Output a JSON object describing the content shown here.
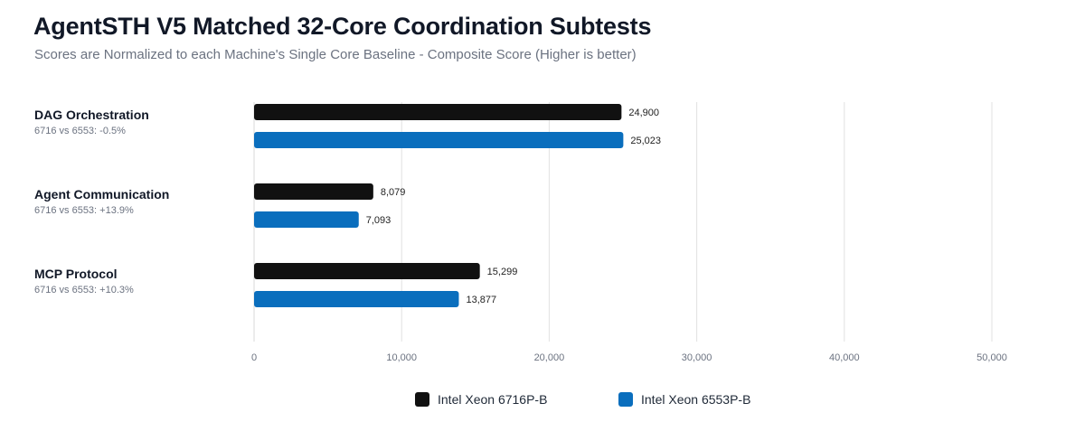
{
  "chart_data": {
    "type": "bar",
    "orientation": "horizontal",
    "title": "AgentSTH V5 Matched 32-Core Coordination Subtests",
    "subtitle": "Scores are Normalized to each Machine's Single Core Baseline - Composite Score (Higher is better)",
    "categories": [
      "DAG Orchestration",
      "Agent Communication",
      "MCP Protocol"
    ],
    "category_notes": [
      "6716 vs 6553: -0.5%",
      "6716 vs 6553: +13.9%",
      "6716 vs 6553: +10.3%"
    ],
    "series": [
      {
        "name": "Intel Xeon 6716P-B",
        "color": "#111111",
        "values": [
          24900,
          8079,
          15299
        ],
        "labels": [
          "24,900",
          "8,079",
          "15,299"
        ]
      },
      {
        "name": "Intel Xeon 6553P-B",
        "color": "#0a6ebd",
        "values": [
          25023,
          7093,
          13877
        ],
        "labels": [
          "25,023",
          "7,093",
          "13,877"
        ]
      }
    ],
    "xlabel": "",
    "ylabel": "",
    "xlim": [
      0,
      50000
    ],
    "xticks": [
      0,
      10000,
      20000,
      30000,
      40000,
      50000
    ],
    "xtick_labels": [
      "0",
      "10,000",
      "20,000",
      "30,000",
      "40,000",
      "50,000"
    ],
    "grid": true,
    "legend_position": "bottom-center"
  }
}
